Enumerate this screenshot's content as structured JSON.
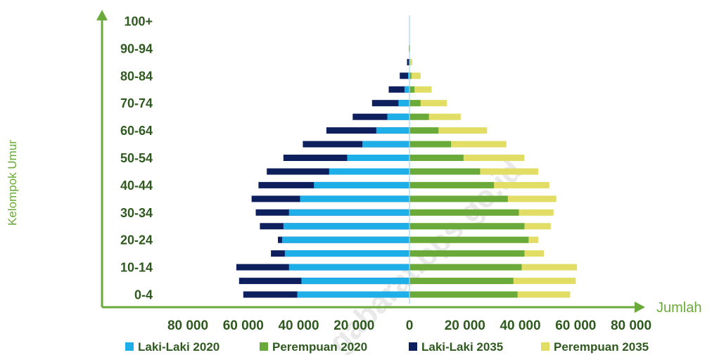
{
  "watermark": "gabarat.bps.go.id",
  "chart_data": {
    "type": "bar",
    "orientation": "horizontal-population-pyramid",
    "ylabel": "Kelompok Umur",
    "xlabel": "Jumlah",
    "xlim": [
      -80000,
      80000
    ],
    "x_ticks": [
      "80 000",
      "60 000",
      "40 000",
      "20 000",
      "0",
      "20 000",
      "40 000",
      "60 000",
      "80 000"
    ],
    "categories": [
      "0-4",
      "5-9",
      "10-14",
      "15-19",
      "20-24",
      "25-29",
      "30-34",
      "35-39",
      "40-44",
      "45-49",
      "50-54",
      "55-59",
      "60-64",
      "65-69",
      "70-74",
      "75-79",
      "80-84",
      "85-89",
      "90-94",
      "95-99",
      "100+"
    ],
    "y_tick_labels": [
      "0-4",
      "10-14",
      "20-24",
      "30-34",
      "40-44",
      "50-54",
      "60-64",
      "70-74",
      "80-84",
      "90-94",
      "100+"
    ],
    "legend_position": "bottom",
    "series": [
      {
        "name": "Laki-Laki 2020",
        "color": "#1eaee8",
        "side": "left",
        "values": [
          40500,
          39000,
          43500,
          45000,
          46000,
          45500,
          43500,
          39500,
          34500,
          29000,
          22500,
          17000,
          12000,
          8000,
          4000,
          1800,
          500,
          150,
          50,
          20,
          5
        ]
      },
      {
        "name": "Perempuan 2020",
        "color": "#6aaa3a",
        "side": "right",
        "values": [
          39000,
          37500,
          40500,
          41500,
          43000,
          41500,
          39500,
          35500,
          30500,
          25500,
          19500,
          15000,
          10500,
          7000,
          4000,
          1800,
          700,
          250,
          80,
          30,
          10
        ]
      },
      {
        "name": "Laki-Laki 2035",
        "color": "#0d1f5c",
        "side": "left",
        "values": [
          60000,
          61500,
          62500,
          50000,
          47500,
          54000,
          55500,
          57000,
          54500,
          51500,
          45500,
          38500,
          30000,
          20500,
          13500,
          7500,
          3500,
          900,
          200,
          50,
          10
        ]
      },
      {
        "name": "Perempuan 2035",
        "color": "#e2dd64",
        "side": "right",
        "values": [
          58000,
          60000,
          60500,
          48500,
          46500,
          51000,
          52000,
          53000,
          50500,
          46500,
          41500,
          35000,
          28000,
          18500,
          13500,
          8000,
          4000,
          1000,
          300,
          60,
          10
        ]
      }
    ]
  }
}
